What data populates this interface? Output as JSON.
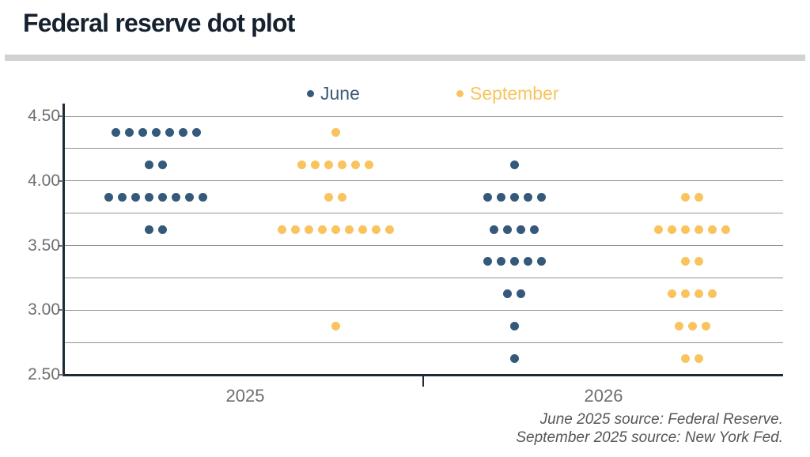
{
  "header": {
    "title": "Federal reserve dot plot"
  },
  "legend": {
    "items": [
      {
        "label": "June",
        "color": "#3d5a76",
        "marker_color": "#35597b"
      },
      {
        "label": "September",
        "color": "#f9c45e",
        "marker_color": "#f9c45e"
      }
    ]
  },
  "x_axis": {
    "labels": [
      "2025",
      "2026"
    ]
  },
  "y_axis": {
    "tick_labels": [
      "4.50",
      "4.00",
      "3.50",
      "3.00",
      "2.50"
    ],
    "tick_values": [
      4.5,
      4.0,
      3.5,
      3.0,
      2.5
    ]
  },
  "source": {
    "line1": "June 2025 source: Federal Reserve.",
    "line2": "September 2025 source: New York Fed."
  },
  "chart_data": {
    "type": "scatter",
    "subtype": "dot-plot",
    "title": "Federal reserve dot plot",
    "xlabel": "",
    "ylabel": "",
    "ylim": [
      2.5,
      4.5
    ],
    "gridline_interval": 0.25,
    "grid": true,
    "legend_position": "top-center",
    "categories": [
      "2025",
      "2026"
    ],
    "yticks": [
      4.5,
      4.0,
      3.5,
      3.0,
      2.5
    ],
    "series": [
      {
        "name": "June",
        "color": "#35597b",
        "points": [
          {
            "year": "2025",
            "rate": 4.375,
            "count": 7
          },
          {
            "year": "2025",
            "rate": 4.125,
            "count": 2
          },
          {
            "year": "2025",
            "rate": 3.875,
            "count": 8
          },
          {
            "year": "2025",
            "rate": 3.625,
            "count": 2
          },
          {
            "year": "2026",
            "rate": 4.125,
            "count": 1
          },
          {
            "year": "2026",
            "rate": 3.875,
            "count": 5
          },
          {
            "year": "2026",
            "rate": 3.625,
            "count": 4
          },
          {
            "year": "2026",
            "rate": 3.375,
            "count": 5
          },
          {
            "year": "2026",
            "rate": 3.125,
            "count": 2
          },
          {
            "year": "2026",
            "rate": 2.875,
            "count": 1
          },
          {
            "year": "2026",
            "rate": 2.625,
            "count": 1
          }
        ]
      },
      {
        "name": "September",
        "color": "#f9c45e",
        "points": [
          {
            "year": "2025",
            "rate": 4.375,
            "count": 1
          },
          {
            "year": "2025",
            "rate": 4.125,
            "count": 6
          },
          {
            "year": "2025",
            "rate": 3.875,
            "count": 2
          },
          {
            "year": "2025",
            "rate": 3.625,
            "count": 9
          },
          {
            "year": "2025",
            "rate": 2.875,
            "count": 1
          },
          {
            "year": "2026",
            "rate": 3.875,
            "count": 2
          },
          {
            "year": "2026",
            "rate": 3.625,
            "count": 6
          },
          {
            "year": "2026",
            "rate": 3.375,
            "count": 2
          },
          {
            "year": "2026",
            "rate": 3.125,
            "count": 4
          },
          {
            "year": "2026",
            "rate": 2.875,
            "count": 3
          },
          {
            "year": "2026",
            "rate": 2.625,
            "count": 2
          }
        ]
      }
    ]
  }
}
